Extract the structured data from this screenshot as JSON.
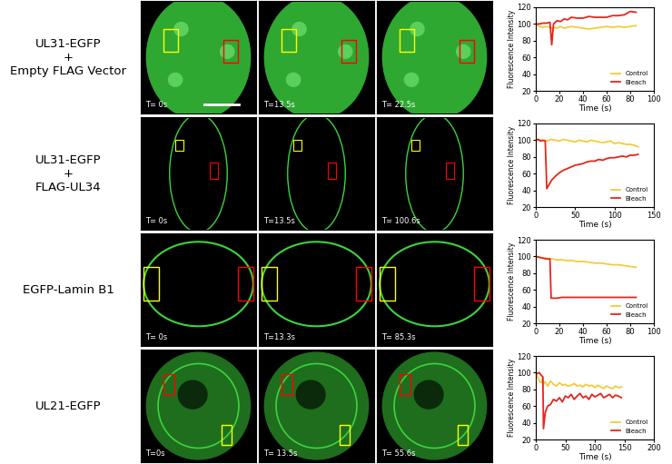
{
  "panels": [
    {
      "label": "UL31-EGFP\n+\nEmpty FLAG Vector",
      "timestamps": [
        "T= 0s",
        "T=13.5s",
        "T= 22.5s"
      ]
    },
    {
      "label": "UL31-EGFP\n+\nFLAG-UL34",
      "timestamps": [
        "T= 0s",
        "T=13.5s",
        "T= 100.6s"
      ]
    },
    {
      "label": "EGFP-Lamin B1",
      "timestamps": [
        "T= 0s",
        "T=13.3s",
        "T= 85.3s"
      ]
    },
    {
      "label": "UL21-EGFP",
      "timestamps": [
        "T=0s",
        "T= 13.5s",
        "T= 55.6s"
      ]
    }
  ],
  "chart_data": [
    {
      "type": "line",
      "xlabel": "Time (s)",
      "ylabel": "Fluorescence Intensity",
      "x": [
        0,
        3,
        6,
        9,
        12,
        13.5,
        15,
        18,
        21,
        24,
        27,
        30,
        35,
        40,
        45,
        50,
        55,
        60,
        65,
        70,
        75,
        80,
        85
      ],
      "series": [
        {
          "name": "Control",
          "color": "#f2cc3a",
          "line_style": "solid",
          "values": [
            100,
            97,
            96,
            97,
            96,
            95,
            96,
            95,
            97,
            95,
            96,
            97,
            96,
            95,
            94,
            95,
            96,
            97,
            96,
            97,
            96,
            97,
            98
          ]
        },
        {
          "name": "Bleach",
          "color": "#e5261b",
          "line_style": "solid",
          "values": [
            100,
            100,
            101,
            101,
            102,
            75,
            100,
            104,
            103,
            106,
            105,
            108,
            107,
            107,
            109,
            108,
            108,
            108,
            110,
            110,
            111,
            115,
            114
          ]
        }
      ],
      "xlim": [
        0,
        100
      ],
      "xticks": [
        0,
        20,
        40,
        60,
        80,
        100
      ],
      "ylim": [
        20,
        120
      ],
      "yticks": [
        20,
        40,
        60,
        80,
        100,
        120
      ],
      "legend": "lower right"
    },
    {
      "type": "line",
      "xlabel": "Time (s)",
      "ylabel": "Fluorescence Intensity",
      "x": [
        0,
        3,
        6,
        9,
        12,
        14,
        17,
        20,
        25,
        30,
        35,
        40,
        45,
        50,
        55,
        60,
        65,
        70,
        75,
        80,
        85,
        90,
        95,
        100,
        105,
        110,
        115,
        120,
        125,
        130
      ],
      "series": [
        {
          "name": "Control",
          "color": "#f2cc3a",
          "line_style": "solid",
          "values": [
            100,
            101,
            100,
            99,
            100,
            99,
            100,
            101,
            100,
            99,
            101,
            100,
            99,
            98,
            100,
            99,
            98,
            100,
            99,
            98,
            97,
            98,
            99,
            96,
            97,
            96,
            95,
            95,
            94,
            92
          ]
        },
        {
          "name": "Bleach",
          "color": "#e5261b",
          "line_style": "solid",
          "values": [
            100,
            101,
            99,
            100,
            99,
            42,
            47,
            52,
            57,
            61,
            64,
            66,
            68,
            70,
            71,
            72,
            74,
            75,
            75,
            77,
            76,
            78,
            79,
            79,
            80,
            81,
            80,
            82,
            82,
            83
          ]
        }
      ],
      "xlim": [
        0,
        150
      ],
      "xticks": [
        0,
        50,
        100,
        150
      ],
      "ylim": [
        20,
        120
      ],
      "yticks": [
        20,
        40,
        60,
        80,
        100,
        120
      ],
      "legend": "lower right"
    },
    {
      "type": "line",
      "xlabel": "Time (s)",
      "ylabel": "Fluorescence Intensity",
      "x": [
        0,
        3,
        6,
        9,
        12,
        13,
        14,
        18,
        22,
        26,
        30,
        35,
        40,
        45,
        50,
        55,
        60,
        65,
        70,
        75,
        80,
        85
      ],
      "series": [
        {
          "name": "Control",
          "color": "#f2cc3a",
          "line_style": "solid",
          "values": [
            100,
            99,
            98,
            98,
            97,
            97,
            97,
            96,
            96,
            95,
            95,
            94,
            94,
            93,
            92,
            92,
            91,
            90,
            90,
            89,
            88,
            87
          ]
        },
        {
          "name": "Bleach",
          "color": "#e5261b",
          "line_style": "solid",
          "values": [
            100,
            99,
            98,
            97,
            97,
            50,
            50,
            50,
            51,
            51,
            51,
            51,
            51,
            51,
            51,
            51,
            51,
            51,
            51,
            51,
            51,
            51
          ]
        }
      ],
      "xlim": [
        0,
        100
      ],
      "xticks": [
        0,
        20,
        40,
        60,
        80,
        100
      ],
      "ylim": [
        20,
        120
      ],
      "yticks": [
        20,
        40,
        60,
        80,
        100,
        120
      ],
      "legend": "lower right"
    },
    {
      "type": "line",
      "xlabel": "Time (s)",
      "ylabel": "Fluorescence Intensity",
      "x": [
        0,
        3,
        6,
        9,
        12,
        13,
        16,
        20,
        25,
        30,
        35,
        40,
        45,
        50,
        55,
        60,
        65,
        70,
        75,
        80,
        85,
        90,
        95,
        100,
        105,
        110,
        115,
        120,
        125,
        130,
        135,
        140,
        145
      ],
      "series": [
        {
          "name": "Control",
          "color": "#f2cc3a",
          "line_style": "solid",
          "values": [
            100,
            95,
            90,
            88,
            94,
            86,
            89,
            84,
            90,
            86,
            84,
            88,
            85,
            86,
            84,
            85,
            87,
            84,
            85,
            83,
            86,
            84,
            85,
            82,
            85,
            83,
            81,
            84,
            82,
            81,
            84,
            82,
            83
          ]
        },
        {
          "name": "Bleach",
          "color": "#e5261b",
          "line_style": "solid",
          "values": [
            100,
            99,
            100,
            97,
            95,
            33,
            52,
            60,
            62,
            68,
            66,
            70,
            65,
            72,
            70,
            74,
            68,
            72,
            75,
            70,
            72,
            68,
            74,
            71,
            73,
            75,
            70,
            72,
            74,
            70,
            73,
            72,
            70
          ]
        }
      ],
      "xlim": [
        0,
        200
      ],
      "xticks": [
        0,
        50,
        100,
        150,
        200
      ],
      "ylim": [
        20,
        120
      ],
      "yticks": [
        20,
        40,
        60,
        80,
        100,
        120
      ],
      "legend": "lower right"
    }
  ]
}
